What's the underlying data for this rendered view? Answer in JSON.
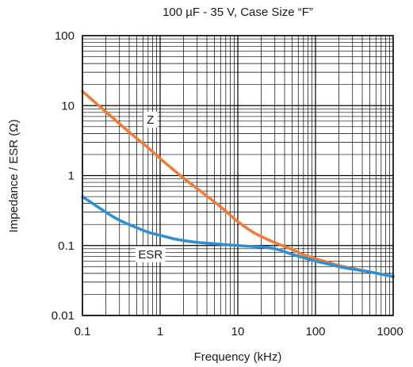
{
  "chart_data": {
    "type": "line",
    "title": "100 µF - 35 V, Case Size “F”",
    "xlabel": "Frequency (kHz)",
    "ylabel": "Impedance / ESR (Ω)",
    "x_scale": "log",
    "y_scale": "log",
    "xlim": [
      0.1,
      1000
    ],
    "ylim": [
      0.01,
      100
    ],
    "x_ticks": [
      0.1,
      1,
      10,
      100,
      1000
    ],
    "x_tick_labels": [
      "0.1",
      "1",
      "10",
      "100",
      "1000"
    ],
    "y_ticks": [
      0.01,
      0.1,
      1,
      10,
      100
    ],
    "y_tick_labels": [
      "0.01",
      "0.1",
      "1",
      "10",
      "100"
    ],
    "grid": true,
    "legend": "inline labels",
    "series": [
      {
        "name": "Z",
        "color": "#ee7d3b",
        "label_at": [
          0.75,
          6.3
        ],
        "x": [
          0.1,
          0.15,
          0.2,
          0.3,
          0.5,
          0.7,
          1,
          1.5,
          2,
          3,
          5,
          7,
          10,
          15,
          20,
          30,
          50,
          70,
          100,
          150,
          200,
          300,
          500,
          700,
          1000
        ],
        "y": [
          16,
          10.8,
          8.2,
          5.5,
          3.4,
          2.5,
          1.75,
          1.2,
          0.92,
          0.65,
          0.42,
          0.31,
          0.22,
          0.16,
          0.135,
          0.11,
          0.088,
          0.074,
          0.065,
          0.057,
          0.052,
          0.047,
          0.042,
          0.039,
          0.036
        ]
      },
      {
        "name": "ESR",
        "color": "#2f8fd0",
        "label_at": [
          0.75,
          0.075
        ],
        "x": [
          0.1,
          0.15,
          0.2,
          0.3,
          0.5,
          0.7,
          1,
          1.5,
          2,
          3,
          5,
          7,
          10,
          15,
          20,
          30,
          50,
          70,
          100,
          150,
          200,
          300,
          500,
          700,
          1000
        ],
        "y": [
          0.5,
          0.37,
          0.3,
          0.23,
          0.18,
          0.155,
          0.14,
          0.125,
          0.118,
          0.111,
          0.106,
          0.103,
          0.1,
          0.097,
          0.095,
          0.09,
          0.075,
          0.067,
          0.06,
          0.054,
          0.05,
          0.046,
          0.042,
          0.039,
          0.036
        ]
      }
    ]
  }
}
